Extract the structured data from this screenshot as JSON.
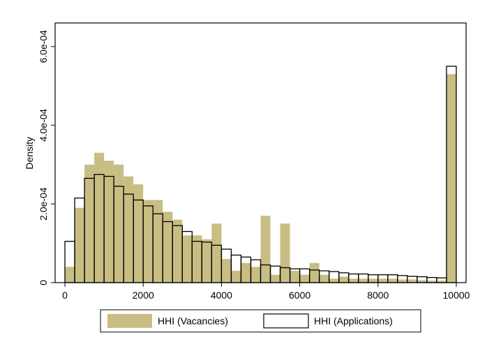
{
  "chart_data": {
    "type": "bar",
    "bin_width": 250,
    "xlim": [
      -250,
      10250
    ],
    "ylim": [
      0,
      0.00066
    ],
    "xticks": [
      0,
      2000,
      4000,
      6000,
      8000,
      10000
    ],
    "yticks": [
      0,
      0.0002,
      0.0004,
      0.0006
    ],
    "xtick_labels": [
      "0",
      "2000",
      "4000",
      "6000",
      "8000",
      "10000"
    ],
    "ytick_labels": [
      "0",
      "2.0e-04",
      "4.0e-04",
      "6.0e-04"
    ],
    "xlabel": "",
    "ylabel": "Density",
    "grid": false,
    "legend_position": "bottom",
    "series": [
      {
        "name": "HHI (Vacancies)",
        "style": "filled",
        "color": "#c8bd83",
        "bin_starts": [
          0,
          250,
          500,
          750,
          1000,
          1250,
          1500,
          1750,
          2000,
          2250,
          2500,
          2750,
          3000,
          3250,
          3500,
          3750,
          4000,
          4250,
          4500,
          4750,
          5000,
          5250,
          5500,
          5750,
          6000,
          6250,
          6500,
          6750,
          7000,
          7250,
          7500,
          7750,
          8000,
          8250,
          8500,
          8750,
          9000,
          9250,
          9500,
          9750
        ],
        "values": [
          4e-05,
          0.00019,
          0.0003,
          0.00033,
          0.00031,
          0.0003,
          0.00027,
          0.00025,
          0.00021,
          0.00021,
          0.00018,
          0.00016,
          0.00012,
          0.00012,
          0.00011,
          0.00015,
          6e-05,
          3e-05,
          5e-05,
          4e-05,
          0.00017,
          2e-05,
          0.00015,
          3e-05,
          2e-05,
          5e-05,
          2e-05,
          1e-05,
          1.5e-05,
          1e-05,
          1e-05,
          1e-05,
          1e-05,
          1e-05,
          8e-06,
          8e-06,
          6e-06,
          5e-06,
          5e-06,
          0.00053
        ]
      },
      {
        "name": "HHI (Applications)",
        "style": "outline",
        "color": "#000000",
        "bin_starts": [
          0,
          250,
          500,
          750,
          1000,
          1250,
          1500,
          1750,
          2000,
          2250,
          2500,
          2750,
          3000,
          3250,
          3500,
          3750,
          4000,
          4250,
          4500,
          4750,
          5000,
          5250,
          5500,
          5750,
          6000,
          6250,
          6500,
          6750,
          7000,
          7250,
          7500,
          7750,
          8000,
          8250,
          8500,
          8750,
          9000,
          9250,
          9500,
          9750
        ],
        "values": [
          0.000105,
          0.000215,
          0.000265,
          0.000275,
          0.00027,
          0.000245,
          0.000225,
          0.00021,
          0.000195,
          0.000175,
          0.000155,
          0.000145,
          0.00013,
          0.000105,
          0.000103,
          9.5e-05,
          8.5e-05,
          7e-05,
          6.5e-05,
          5.8e-05,
          4.5e-05,
          4.2e-05,
          3.8e-05,
          3.5e-05,
          3.5e-05,
          3.2e-05,
          3e-05,
          2.8e-05,
          2.5e-05,
          2.2e-05,
          2.2e-05,
          2e-05,
          2e-05,
          2e-05,
          1.8e-05,
          1.6e-05,
          1.5e-05,
          1.3e-05,
          1.2e-05,
          0.00055
        ]
      }
    ]
  }
}
